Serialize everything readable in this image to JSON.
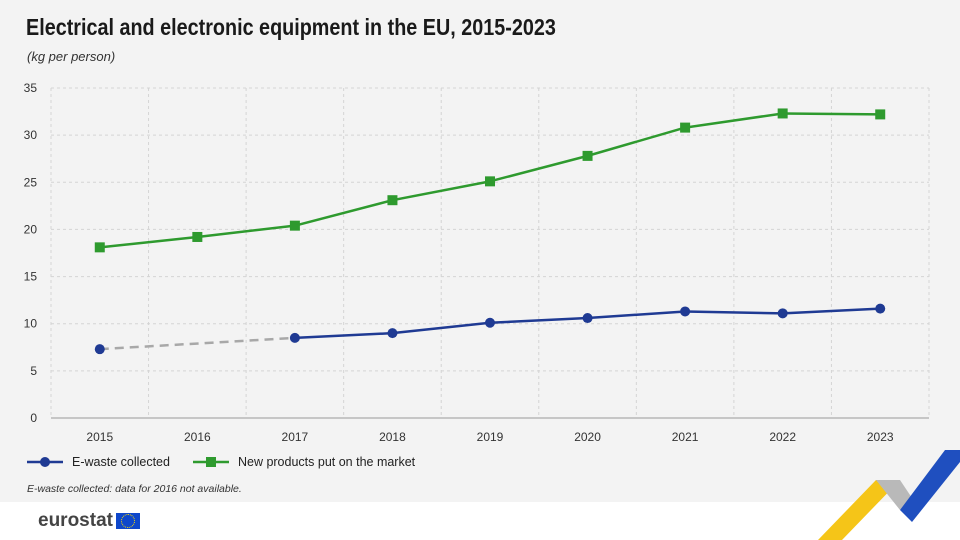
{
  "header": {
    "title": "Electrical and electronic equipment in the EU, 2015-2023",
    "subtitle": "(kg per person)"
  },
  "note": "E-waste collected: data for 2016 not available.",
  "brand": {
    "name": "eurostat"
  },
  "colors": {
    "ewaste": "#1f3a93",
    "market": "#2e9a2e",
    "gap": "#a8a8a8"
  },
  "chart_data": {
    "type": "line",
    "title": "Electrical and electronic equipment in the EU, 2015-2023",
    "subtitle": "(kg per person)",
    "x": [
      "2015",
      "2016",
      "2017",
      "2018",
      "2019",
      "2020",
      "2021",
      "2022",
      "2023"
    ],
    "ylim": [
      0,
      35
    ],
    "yticks": [
      0,
      5,
      10,
      15,
      20,
      25,
      30,
      35
    ],
    "grid": true,
    "legend_position": "bottom-left",
    "series": [
      {
        "name": "E-waste collected",
        "marker": "circle",
        "values": [
          7.3,
          null,
          8.5,
          9.0,
          10.1,
          10.6,
          11.3,
          11.1,
          11.6
        ]
      },
      {
        "name": "New products put on the market",
        "marker": "square",
        "values": [
          18.1,
          19.2,
          20.4,
          23.1,
          25.1,
          27.8,
          30.8,
          32.3,
          32.2
        ]
      }
    ],
    "annotations": [
      "E-waste collected: data for 2016 not available."
    ]
  }
}
